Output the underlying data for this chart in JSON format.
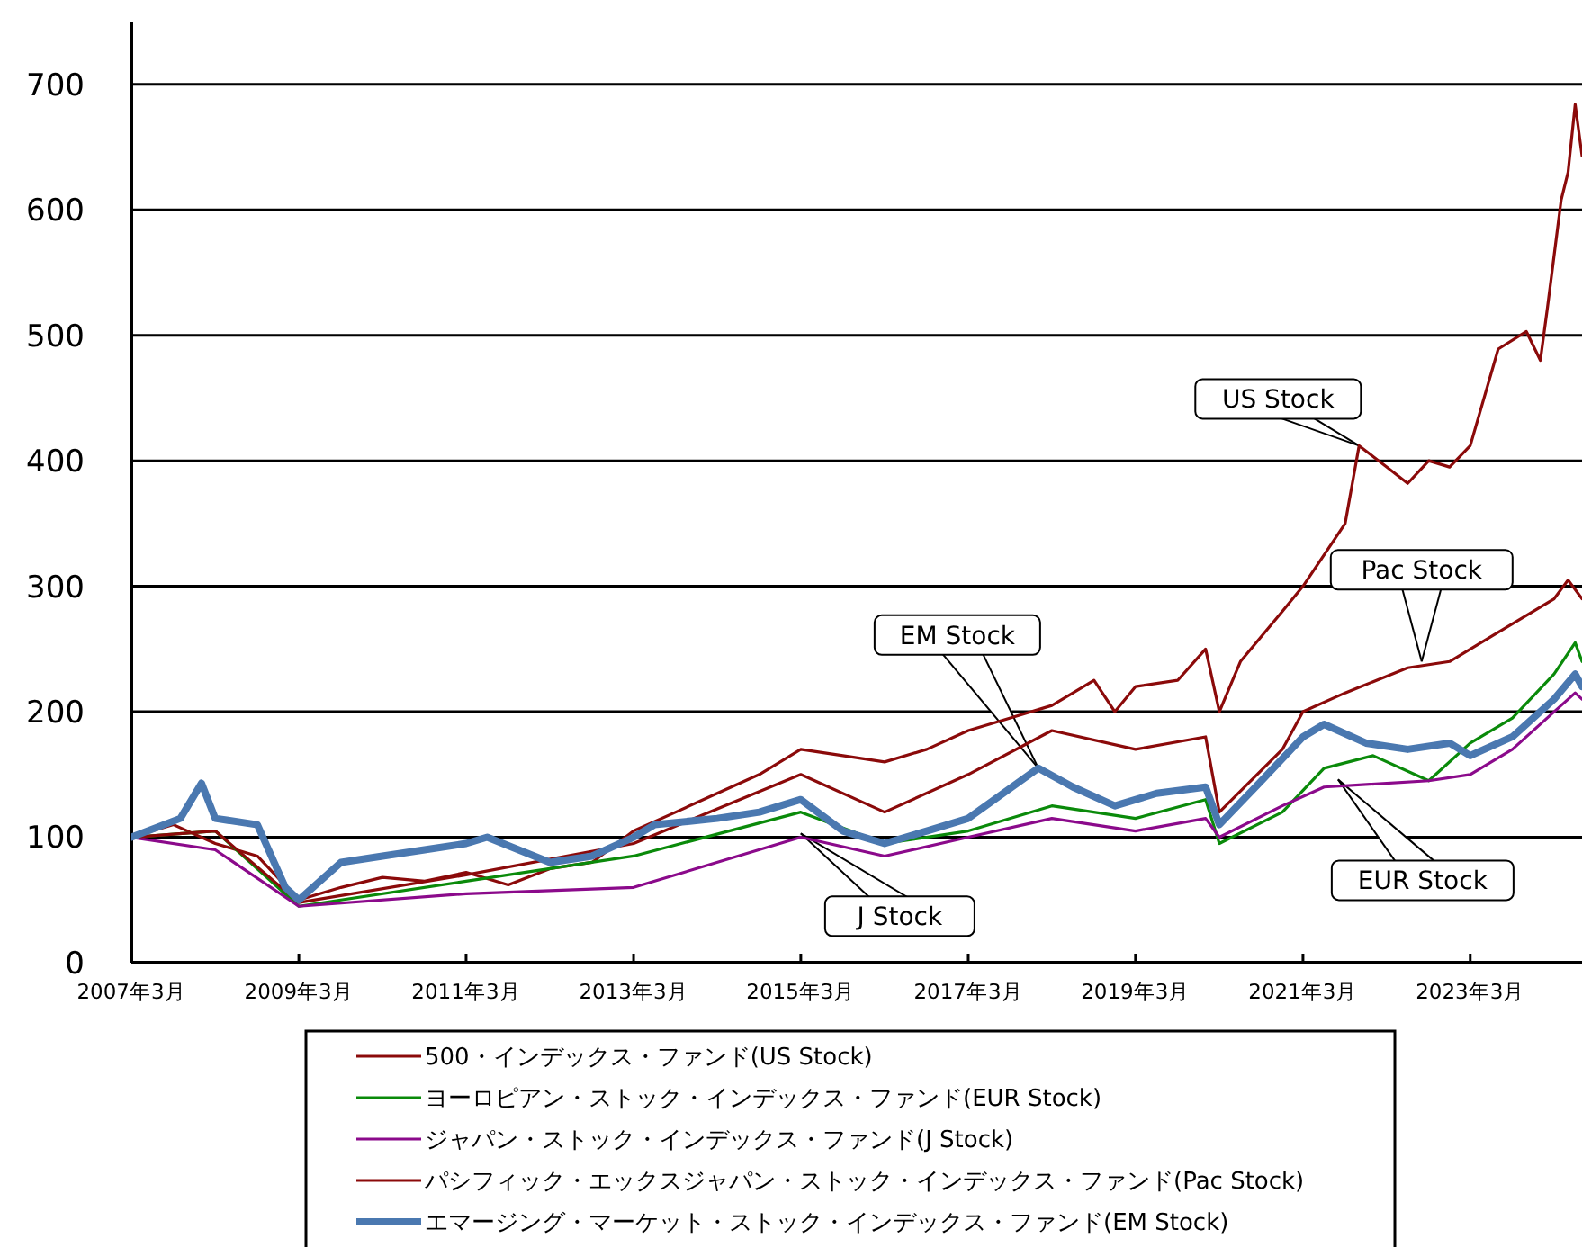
{
  "chart_data": {
    "type": "line",
    "xlim": [
      "2007-03",
      "2024-07"
    ],
    "ylim": [
      0,
      750
    ],
    "xticks": [
      {
        "value": "2007-03",
        "label": "2007年3月"
      },
      {
        "value": "2009-03",
        "label": "2009年3月"
      },
      {
        "value": "2011-03",
        "label": "2011年3月"
      },
      {
        "value": "2013-03",
        "label": "2013年3月"
      },
      {
        "value": "2015-03",
        "label": "2015年3月"
      },
      {
        "value": "2017-03",
        "label": "2017年3月"
      },
      {
        "value": "2019-03",
        "label": "2019年3月"
      },
      {
        "value": "2021-03",
        "label": "2021年3月"
      },
      {
        "value": "2023-03",
        "label": "2023年3月"
      }
    ],
    "yticks": [
      0,
      100,
      200,
      300,
      400,
      500,
      600,
      700
    ],
    "grid": "y",
    "legend": "bottom",
    "line_style": "solid",
    "marker": "none",
    "series": [
      {
        "name": "500・インデックス・ファンド(US Stock)",
        "color": "#8b0a0a",
        "x": [
          "2007-03",
          "2007-09",
          "2008-03",
          "2008-09",
          "2009-03",
          "2009-09",
          "2010-03",
          "2010-09",
          "2011-03",
          "2011-09",
          "2012-03",
          "2012-09",
          "2013-03",
          "2013-09",
          "2014-03",
          "2014-09",
          "2015-03",
          "2015-09",
          "2016-03",
          "2016-09",
          "2017-03",
          "2017-09",
          "2018-03",
          "2018-09",
          "2018-12",
          "2019-03",
          "2019-09",
          "2020-01",
          "2020-03",
          "2020-06",
          "2020-12",
          "2021-03",
          "2021-09",
          "2021-11",
          "2022-03",
          "2022-06",
          "2022-09",
          "2022-12",
          "2023-03",
          "2023-07",
          "2023-11",
          "2024-01",
          "2024-02",
          "2024-04",
          "2024-05",
          "2024-06",
          "2024-07"
        ],
        "values": [
          100,
          110,
          95,
          85,
          50,
          60,
          68,
          65,
          72,
          62,
          75,
          80,
          105,
          120,
          135,
          150,
          170,
          165,
          160,
          170,
          185,
          195,
          205,
          225,
          200,
          220,
          225,
          250,
          200,
          240,
          280,
          300,
          350,
          412,
          395,
          382,
          400,
          395,
          412,
          489,
          503,
          480,
          522,
          608,
          630,
          684,
          643
        ]
      },
      {
        "name": "ヨーロピアン・ストック・インデックス・ファンド(EUR Stock)",
        "color": "#0a8a0a",
        "x": [
          "2007-03",
          "2008-03",
          "2009-03",
          "2011-03",
          "2013-03",
          "2015-03",
          "2016-03",
          "2017-03",
          "2018-03",
          "2019-03",
          "2020-01",
          "2020-03",
          "2020-12",
          "2021-06",
          "2022-01",
          "2022-09",
          "2023-03",
          "2023-09",
          "2024-03",
          "2024-06",
          "2024-07"
        ],
        "values": [
          100,
          105,
          45,
          65,
          85,
          120,
          95,
          105,
          125,
          115,
          130,
          95,
          120,
          155,
          165,
          145,
          175,
          195,
          230,
          255,
          240
        ]
      },
      {
        "name": "ジャパン・ストック・インデックス・ファンド(J Stock)",
        "color": "#8b0a8b",
        "x": [
          "2007-03",
          "2008-03",
          "2009-03",
          "2011-03",
          "2013-03",
          "2015-03",
          "2016-03",
          "2017-03",
          "2018-03",
          "2019-03",
          "2020-01",
          "2020-03",
          "2020-12",
          "2021-06",
          "2022-09",
          "2023-03",
          "2023-09",
          "2024-03",
          "2024-06",
          "2024-07"
        ],
        "values": [
          100,
          90,
          45,
          55,
          60,
          100,
          85,
          100,
          115,
          105,
          115,
          100,
          125,
          140,
          145,
          150,
          170,
          200,
          215,
          210
        ]
      },
      {
        "name": "パシフィック・エックスジャパン・ストック・インデックス・ファンド(Pac Stock)",
        "color": "#8b0a0a",
        "x": [
          "2007-03",
          "2008-03",
          "2009-03",
          "2011-03",
          "2013-03",
          "2015-03",
          "2016-03",
          "2017-03",
          "2018-03",
          "2019-03",
          "2020-01",
          "2020-03",
          "2020-12",
          "2021-03",
          "2021-09",
          "2022-06",
          "2022-12",
          "2023-06",
          "2024-03",
          "2024-05",
          "2024-07"
        ],
        "values": [
          100,
          105,
          48,
          70,
          95,
          150,
          120,
          150,
          185,
          170,
          180,
          120,
          170,
          200,
          215,
          235,
          240,
          260,
          290,
          305,
          290
        ]
      },
      {
        "name": "エマージング・マーケット・ストック・インデックス・ファンド(EM Stock)",
        "color": "#4a78b0",
        "x": [
          "2007-03",
          "2007-10",
          "2008-01",
          "2008-03",
          "2008-09",
          "2009-01",
          "2009-03",
          "2009-09",
          "2010-03",
          "2010-09",
          "2011-03",
          "2011-06",
          "2012-03",
          "2012-09",
          "2013-03",
          "2013-06",
          "2014-03",
          "2014-09",
          "2015-03",
          "2015-09",
          "2016-03",
          "2016-09",
          "2017-03",
          "2018-01",
          "2018-06",
          "2018-12",
          "2019-06",
          "2020-01",
          "2020-03",
          "2020-09",
          "2021-03",
          "2021-06",
          "2021-12",
          "2022-06",
          "2022-12",
          "2023-03",
          "2023-09",
          "2024-03",
          "2024-06",
          "2024-07"
        ],
        "values": [
          100,
          115,
          143,
          115,
          110,
          60,
          50,
          80,
          85,
          90,
          95,
          100,
          80,
          85,
          100,
          110,
          115,
          120,
          130,
          105,
          95,
          105,
          115,
          155,
          140,
          125,
          135,
          140,
          110,
          145,
          180,
          190,
          175,
          170,
          175,
          165,
          180,
          210,
          230,
          220
        ]
      }
    ],
    "annotations": [
      {
        "text": "US Stock",
        "x": "2021-11",
        "y": 412
      },
      {
        "text": "EM Stock",
        "x": "2018-01",
        "y": 155
      },
      {
        "text": "Pac Stock",
        "x": "2022-08",
        "y": 240
      },
      {
        "text": "EUR Stock",
        "x": "2021-08",
        "y": 146
      },
      {
        "text": "J Stock",
        "x": "2015-03",
        "y": 103
      }
    ]
  }
}
